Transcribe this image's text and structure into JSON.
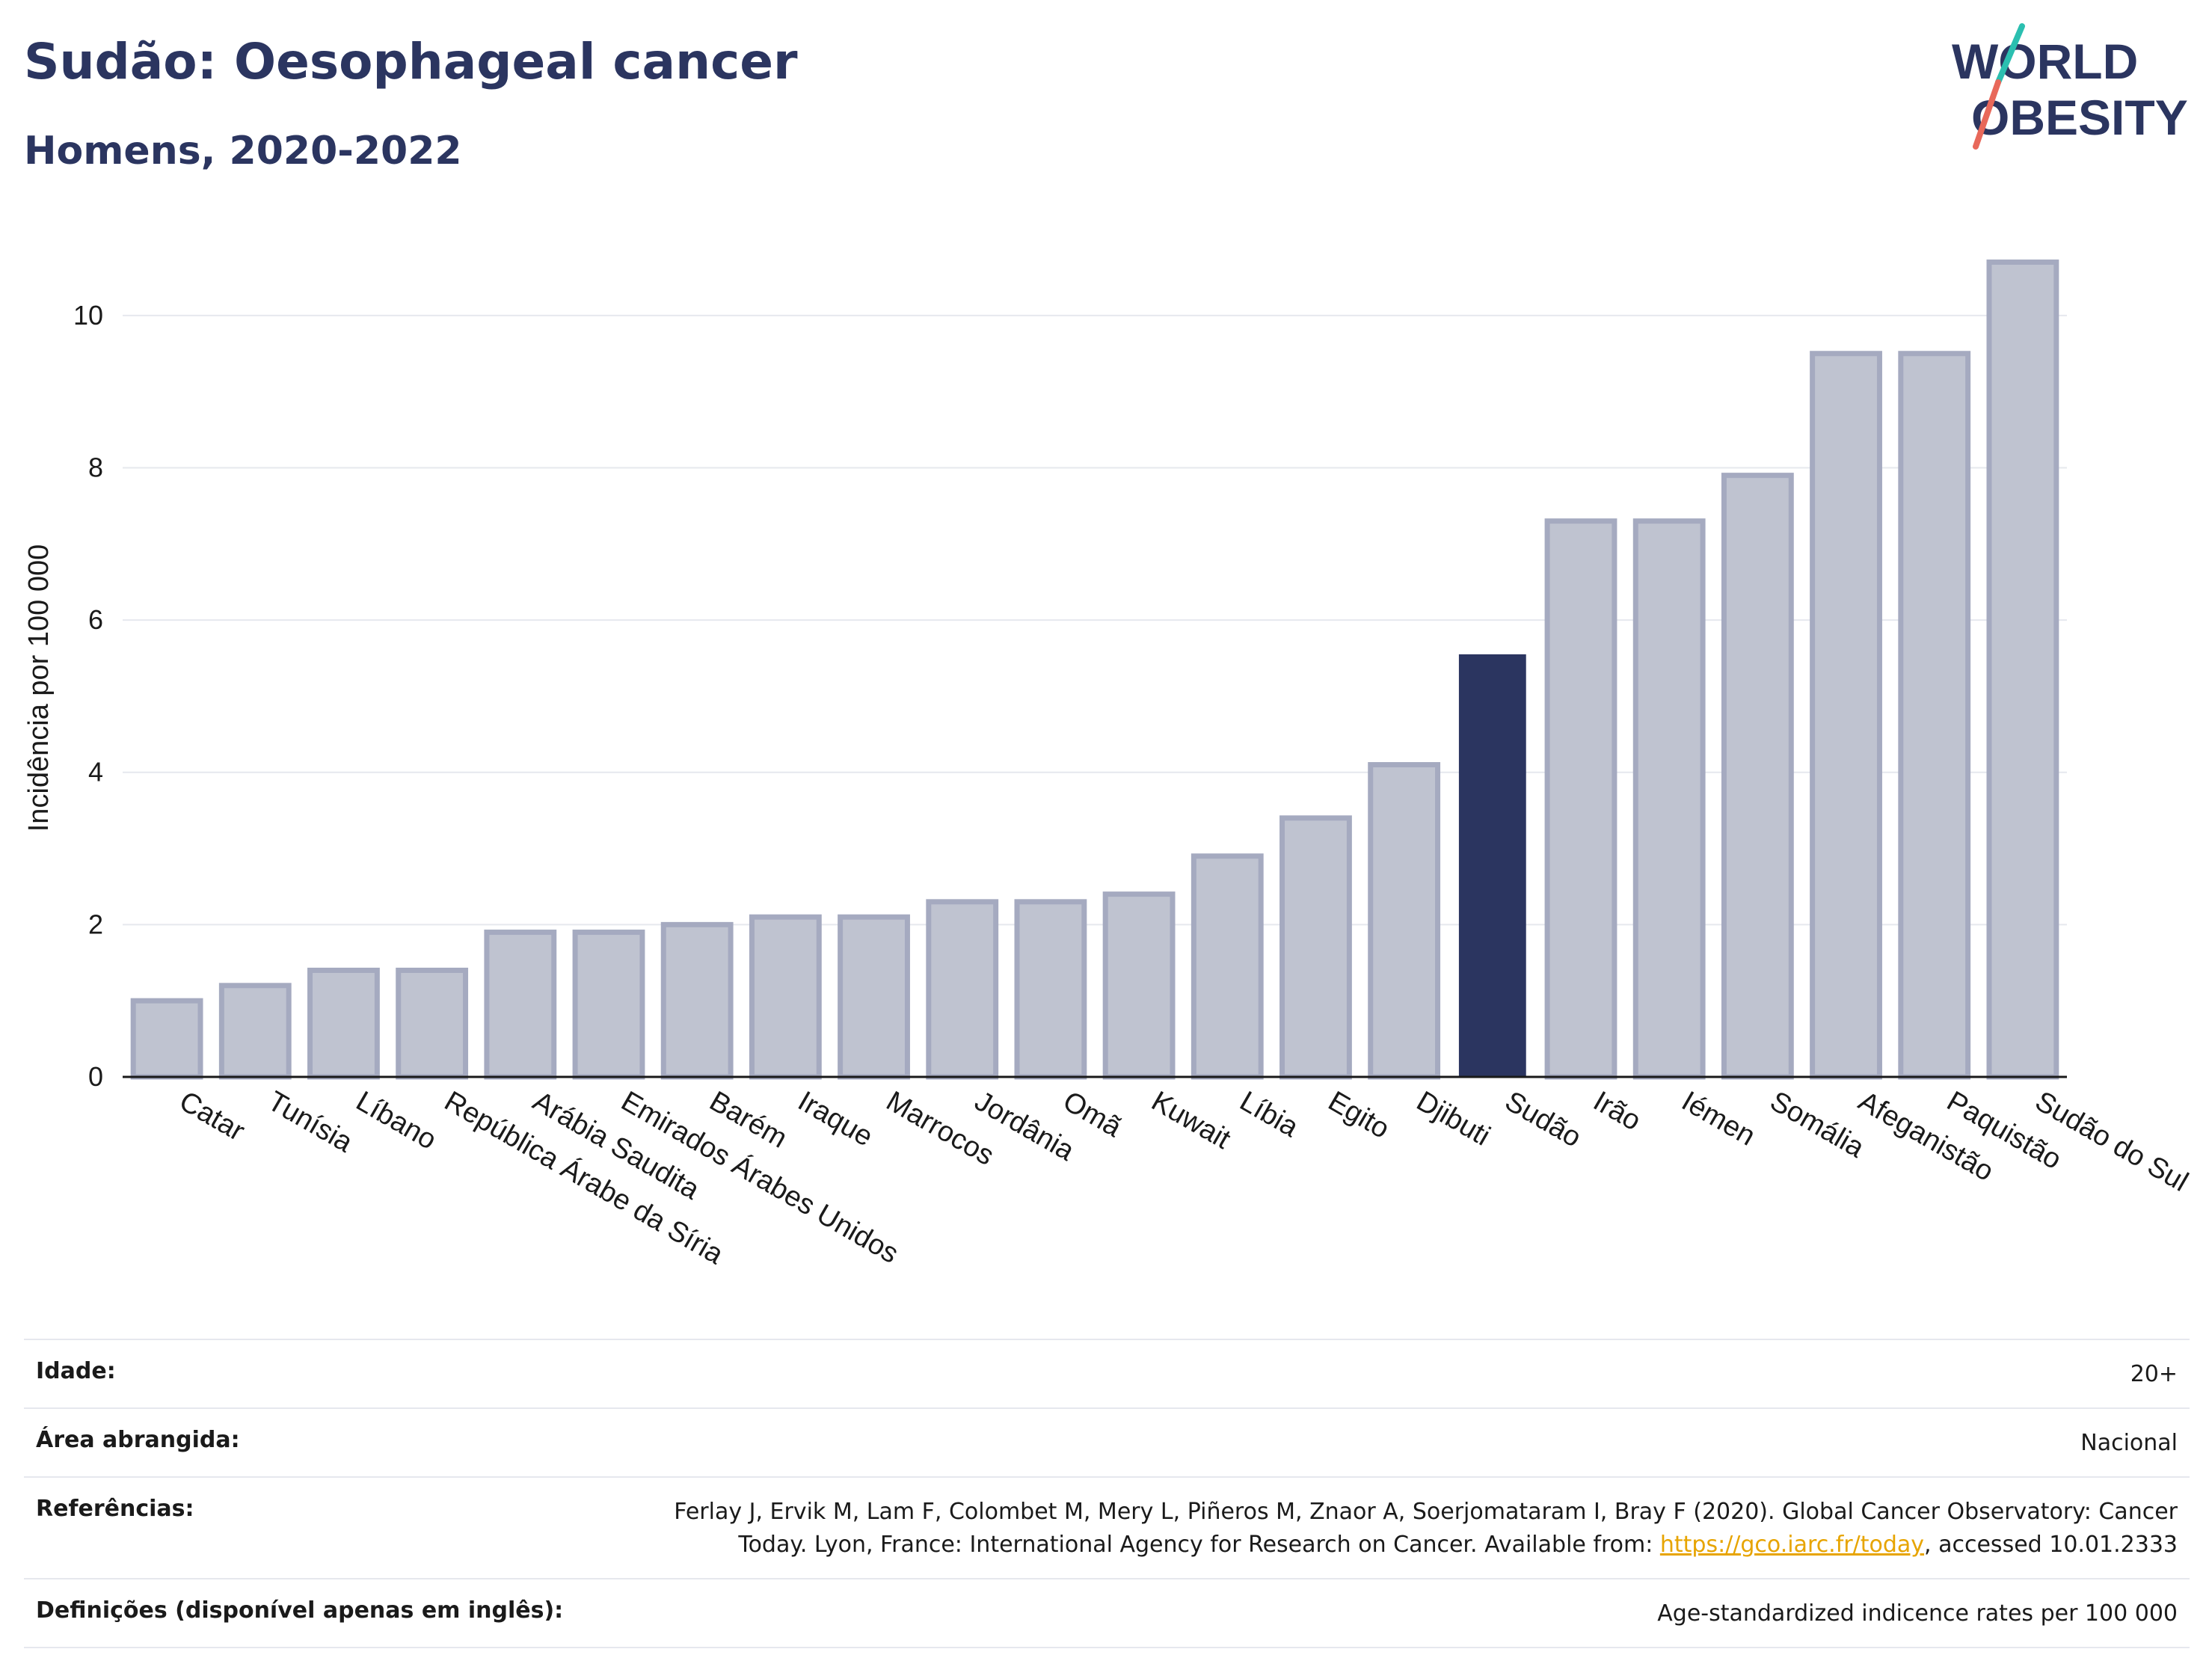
{
  "header": {
    "title": "Sudão: Oesophageal cancer",
    "subtitle": "Homens, 2020-2022"
  },
  "logo": {
    "line1": "WORLD",
    "line2": "OBESITY",
    "colors": {
      "text": "#2b3560",
      "slash_top": "#2bbfb0",
      "slash_bottom": "#e8685a"
    }
  },
  "colors": {
    "bar_default": "#bfc3d0",
    "bar_default_stroke": "#a5aac0",
    "bar_highlight": "#2b3560",
    "axis": "#1a1a1a",
    "grid": "#e6e8ee",
    "link": "#e7a400"
  },
  "chart_data": {
    "type": "bar",
    "ylabel": "Incidência por 100 000",
    "ylim": [
      0,
      11
    ],
    "yticks": [
      0,
      2,
      4,
      6,
      8,
      10
    ],
    "grid": true,
    "highlight": "Sudão",
    "categories": [
      "Catar",
      "Tunísia",
      "Líbano",
      "República Árabe da Síria",
      "Arábia Saudita",
      "Emirados Árabes Unidos",
      "Barém",
      "Iraque",
      "Marrocos",
      "Jordânia",
      "Omã",
      "Kuwait",
      "Líbia",
      "Egito",
      "Djibuti",
      "Sudão",
      "Irão",
      "Iémen",
      "Somália",
      "Afeganistão",
      "Paquistão",
      "Sudão do Sul"
    ],
    "values": [
      1.0,
      1.2,
      1.4,
      1.4,
      1.9,
      1.9,
      2.0,
      2.1,
      2.1,
      2.3,
      2.3,
      2.4,
      2.9,
      3.4,
      4.1,
      5.55,
      7.3,
      7.3,
      7.9,
      9.5,
      9.5,
      10.7
    ]
  },
  "info": {
    "age_label": "Idade:",
    "age_value": "20+",
    "area_label": "Área abrangida:",
    "area_value": "Nacional",
    "ref_label": "Referências:",
    "ref_line1": "Ferlay J, Ervik M, Lam F, Colombet M, Mery L, Piñeros M, Znaor A, Soerjomataram I, Bray F (2020). Global Cancer Observatory: Cancer",
    "ref_line2_pre": "Today. Lyon, France: International Agency for Research on Cancer. Available from: ",
    "ref_link": "https://gco.iarc.fr/today",
    "ref_line2_post": ", accessed 10.01.2333",
    "def_label": "Definições (disponível apenas em inglês):",
    "def_value": "Age-standardized indicence rates per 100 000"
  }
}
